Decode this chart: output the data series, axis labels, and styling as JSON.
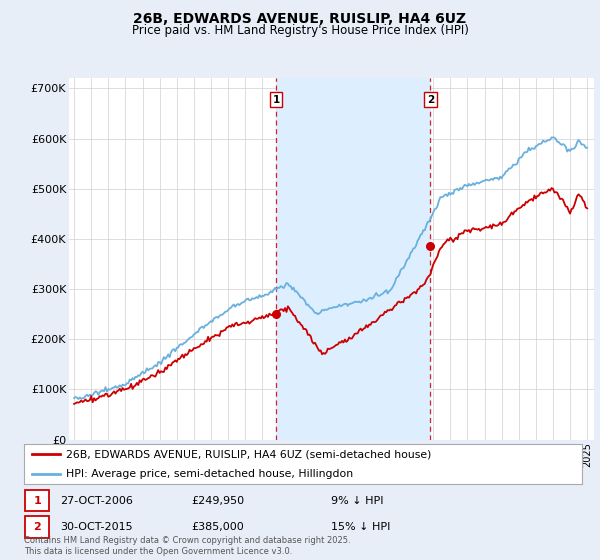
{
  "title1": "26B, EDWARDS AVENUE, RUISLIP, HA4 6UZ",
  "title2": "Price paid vs. HM Land Registry's House Price Index (HPI)",
  "ylim": [
    0,
    720000
  ],
  "yticks": [
    0,
    100000,
    200000,
    300000,
    400000,
    500000,
    600000,
    700000
  ],
  "ytick_labels": [
    "£0",
    "£100K",
    "£200K",
    "£300K",
    "£400K",
    "£500K",
    "£600K",
    "£700K"
  ],
  "purchase1_year": 2006.82,
  "purchase1_price": 249950,
  "purchase1_label": "1",
  "purchase1_date": "27-OCT-2006",
  "purchase1_pct": "9% ↓ HPI",
  "purchase2_year": 2015.83,
  "purchase2_price": 385000,
  "purchase2_label": "2",
  "purchase2_date": "30-OCT-2015",
  "purchase2_pct": "15% ↓ HPI",
  "hpi_color": "#6ab0de",
  "price_color": "#cc0000",
  "shade_color": "#ddeeff",
  "legend_label_price": "26B, EDWARDS AVENUE, RUISLIP, HA4 6UZ (semi-detached house)",
  "legend_label_hpi": "HPI: Average price, semi-detached house, Hillingdon",
  "footnote": "Contains HM Land Registry data © Crown copyright and database right 2025.\nThis data is licensed under the Open Government Licence v3.0.",
  "background_color": "#e8eef8",
  "plot_bg_color": "#ffffff"
}
